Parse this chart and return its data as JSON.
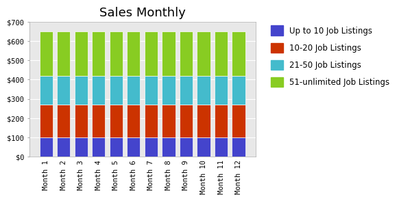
{
  "title": "Sales Monthly",
  "categories": [
    "Month 1",
    "Month 2",
    "Month 3",
    "Month 4",
    "Month 5",
    "Month 6",
    "Month 7",
    "Month 8",
    "Month 9",
    "Month 10",
    "Month 11",
    "Month 12"
  ],
  "series": [
    {
      "label": "Up to 10 Job Listings",
      "values": [
        100,
        100,
        100,
        100,
        100,
        100,
        100,
        100,
        100,
        100,
        100,
        100
      ],
      "color": "#4444CC"
    },
    {
      "label": "10-20 Job Listings",
      "values": [
        170,
        170,
        170,
        170,
        170,
        170,
        170,
        170,
        170,
        170,
        170,
        170
      ],
      "color": "#CC3300"
    },
    {
      "label": "21-50 Job Listings",
      "values": [
        150,
        150,
        150,
        150,
        150,
        150,
        150,
        150,
        150,
        150,
        150,
        150
      ],
      "color": "#44BBCC"
    },
    {
      "label": "51-unlimited Job Listings",
      "values": [
        230,
        230,
        230,
        230,
        230,
        230,
        230,
        230,
        230,
        230,
        230,
        230
      ],
      "color": "#88CC22"
    }
  ],
  "ylim": [
    0,
    700
  ],
  "yticks": [
    0,
    100,
    200,
    300,
    400,
    500,
    600,
    700
  ],
  "ytick_labels": [
    "$0",
    "$100",
    "$200",
    "$300",
    "$400",
    "$500",
    "$600",
    "$700"
  ],
  "background_color": "#ffffff",
  "plot_bg_color": "#E8E8E8",
  "title_fontsize": 13,
  "legend_fontsize": 8.5,
  "tick_fontsize": 7.5,
  "bar_width": 0.75
}
